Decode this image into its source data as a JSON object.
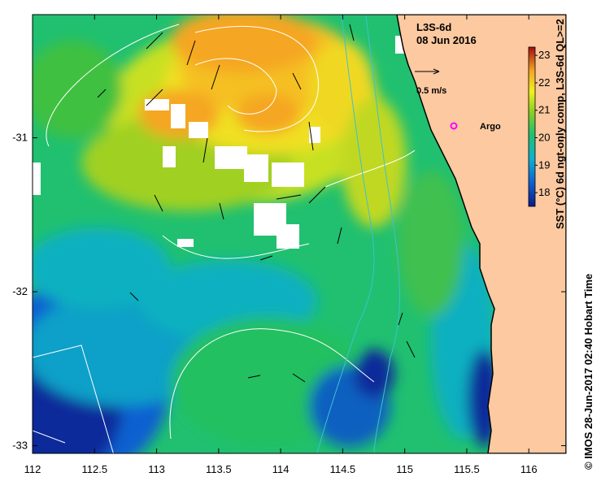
{
  "product": "L3S-6d",
  "date": "08 Jun 2016",
  "scale_label": "0.5 m/s",
  "argo_label": "Argo",
  "credit": "© IMOS 28-Jun-2017 02:40 Hobart Time",
  "colorbar": {
    "label": "SST (°C) 6d ngt-only comp, L3S-6d QL>=2",
    "ticks": [
      "18",
      "19",
      "20",
      "21",
      "22",
      "23"
    ],
    "range": [
      17.5,
      23.3
    ]
  },
  "x_axis": {
    "ticks": [
      "112",
      "112.5",
      "113",
      "113.5",
      "114",
      "114.5",
      "115",
      "115.5",
      "116"
    ],
    "range": [
      112,
      116.3
    ]
  },
  "y_axis": {
    "ticks": [
      "-31",
      "-32",
      "-33"
    ],
    "range": [
      -33.05,
      -30.2
    ]
  },
  "colors": {
    "land": "#fcc9a0",
    "warm": "#f5a623",
    "cold": "#0a2a9a",
    "argo": "#ff00ff",
    "cloud": "#ffffff"
  }
}
